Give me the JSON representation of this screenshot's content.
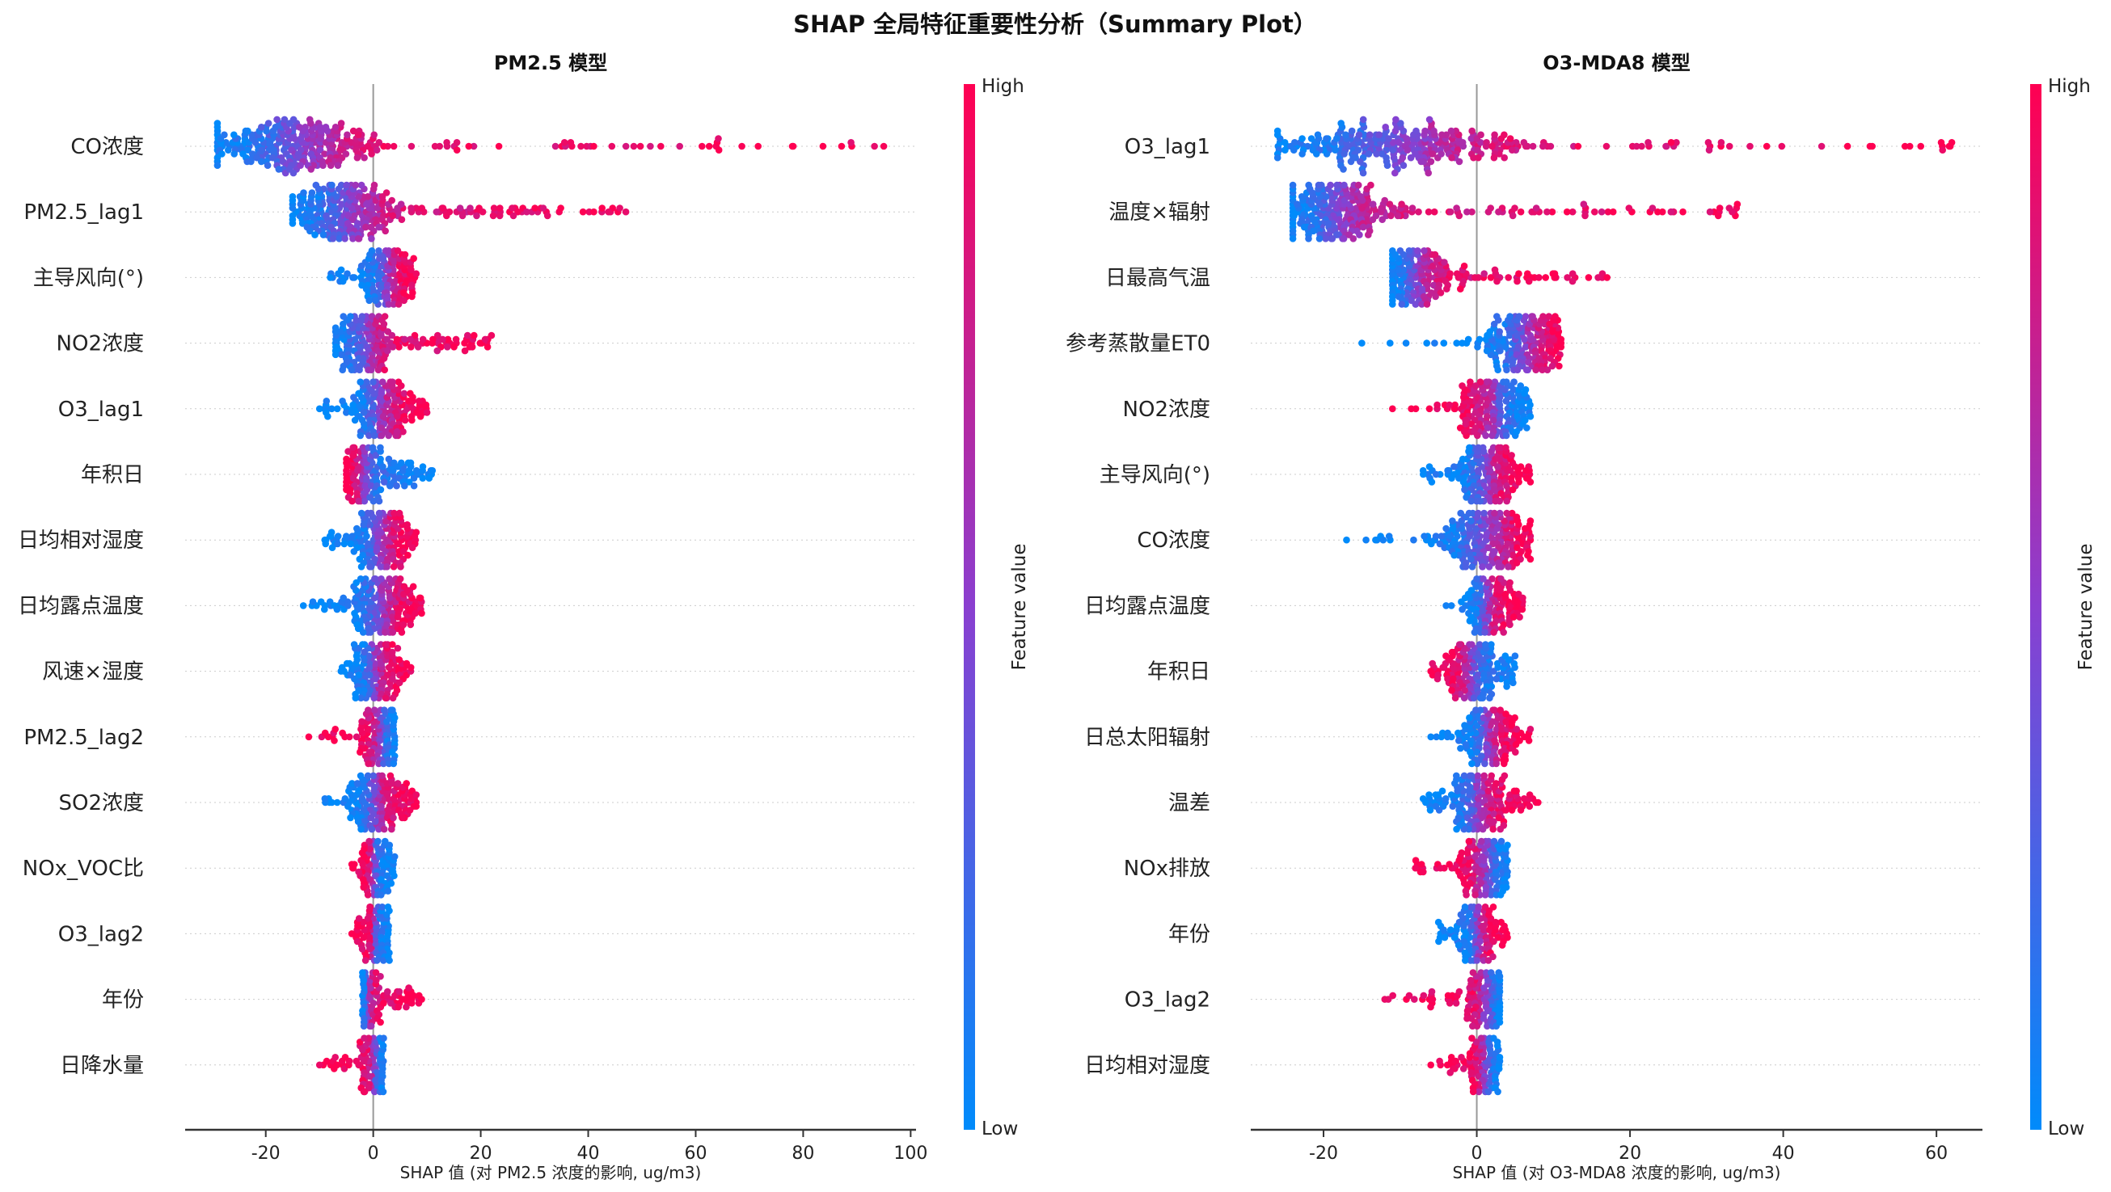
{
  "title": "SHAP 全局特征重要性分析（Summary Plot）",
  "colors": {
    "low": "#008bfb",
    "mid": "#8a3fd0",
    "high": "#ff0052",
    "axis": "#333333",
    "zero_line": "#999999"
  },
  "chart_data": [
    {
      "type": "scatter",
      "subtype": "beeswarm",
      "title": "PM2.5 模型",
      "xlabel": "SHAP 值 (对 PM2.5 浓度的影响, ug/m3)",
      "xlim": [
        -35,
        101
      ],
      "xticks": [
        -20,
        0,
        20,
        40,
        60,
        80,
        100
      ],
      "colorbar": {
        "label": "Feature value",
        "high": "High",
        "low": "Low"
      },
      "features": [
        {
          "name": "CO浓度",
          "range": [
            -29,
            95
          ],
          "mode": -15,
          "trend": "positive"
        },
        {
          "name": "PM2.5_lag1",
          "range": [
            -15,
            47
          ],
          "mode": -5,
          "trend": "positive"
        },
        {
          "name": "主导风向(°)",
          "range": [
            -8,
            8
          ],
          "mode": 2,
          "trend": "positive"
        },
        {
          "name": "NO2浓度",
          "range": [
            -7,
            22
          ],
          "mode": -2,
          "trend": "positive"
        },
        {
          "name": "O3_lag1",
          "range": [
            -10,
            10
          ],
          "mode": 1,
          "trend": "positive"
        },
        {
          "name": "年积日",
          "range": [
            -5,
            11
          ],
          "mode": -2,
          "trend": "negative"
        },
        {
          "name": "日均相对湿度",
          "range": [
            -9,
            8
          ],
          "mode": 1,
          "trend": "positive"
        },
        {
          "name": "日均露点温度",
          "range": [
            -13,
            9
          ],
          "mode": 1,
          "trend": "positive"
        },
        {
          "name": "风速×湿度",
          "range": [
            -6,
            7
          ],
          "mode": 0,
          "trend": "positive"
        },
        {
          "name": "PM2.5_lag2",
          "range": [
            -12,
            4
          ],
          "mode": 1,
          "trend": "negative"
        },
        {
          "name": "SO2浓度",
          "range": [
            -9,
            8
          ],
          "mode": 0,
          "trend": "positive"
        },
        {
          "name": "NOx_VOC比",
          "range": [
            -4,
            4
          ],
          "mode": 0,
          "trend": "negative"
        },
        {
          "name": "O3_lag2",
          "range": [
            -4,
            3
          ],
          "mode": 0,
          "trend": "negative"
        },
        {
          "name": "年份",
          "range": [
            -2,
            9
          ],
          "mode": -1,
          "trend": "positive"
        },
        {
          "name": "日降水量",
          "range": [
            -10,
            2
          ],
          "mode": 0,
          "trend": "negative"
        }
      ]
    },
    {
      "type": "scatter",
      "subtype": "beeswarm",
      "title": "O3-MDA8 模型",
      "xlabel": "SHAP 值 (对 O3-MDA8 浓度的影响, ug/m3)",
      "xlim": [
        -29.5,
        66
      ],
      "xticks": [
        -20,
        0,
        20,
        40,
        60
      ],
      "colorbar": {
        "label": "Feature value",
        "high": "High",
        "low": "Low"
      },
      "features": [
        {
          "name": "O3_lag1",
          "range": [
            -26,
            62
          ],
          "mode": -10,
          "trend": "positive"
        },
        {
          "name": "温度×辐射",
          "range": [
            -24,
            34
          ],
          "mode": -18,
          "trend": "positive"
        },
        {
          "name": "日最高气温",
          "range": [
            -11,
            17
          ],
          "mode": -8,
          "trend": "positive"
        },
        {
          "name": "参考蒸散量ET0",
          "range": [
            -15,
            11
          ],
          "mode": 6,
          "trend": "positive"
        },
        {
          "name": "NO2浓度",
          "range": [
            -11,
            7
          ],
          "mode": 2,
          "trend": "negative"
        },
        {
          "name": "主导风向(°)",
          "range": [
            -7,
            7
          ],
          "mode": 1,
          "trend": "positive"
        },
        {
          "name": "CO浓度",
          "range": [
            -17,
            7
          ],
          "mode": 1,
          "trend": "positive"
        },
        {
          "name": "日均露点温度",
          "range": [
            -4,
            6
          ],
          "mode": 1,
          "trend": "positive"
        },
        {
          "name": "年积日",
          "range": [
            -6,
            5
          ],
          "mode": -1,
          "trend": "negative"
        },
        {
          "name": "日总太阳辐射",
          "range": [
            -6,
            7
          ],
          "mode": 1,
          "trend": "positive"
        },
        {
          "name": "温差",
          "range": [
            -7,
            8
          ],
          "mode": 0,
          "trend": "positive"
        },
        {
          "name": "NOx排放",
          "range": [
            -8,
            4
          ],
          "mode": 1,
          "trend": "negative"
        },
        {
          "name": "年份",
          "range": [
            -5,
            4
          ],
          "mode": 0,
          "trend": "positive"
        },
        {
          "name": "O3_lag2",
          "range": [
            -12,
            3
          ],
          "mode": 1,
          "trend": "negative"
        },
        {
          "name": "日均相对湿度",
          "range": [
            -6,
            3
          ],
          "mode": 1,
          "trend": "negative"
        }
      ]
    }
  ]
}
